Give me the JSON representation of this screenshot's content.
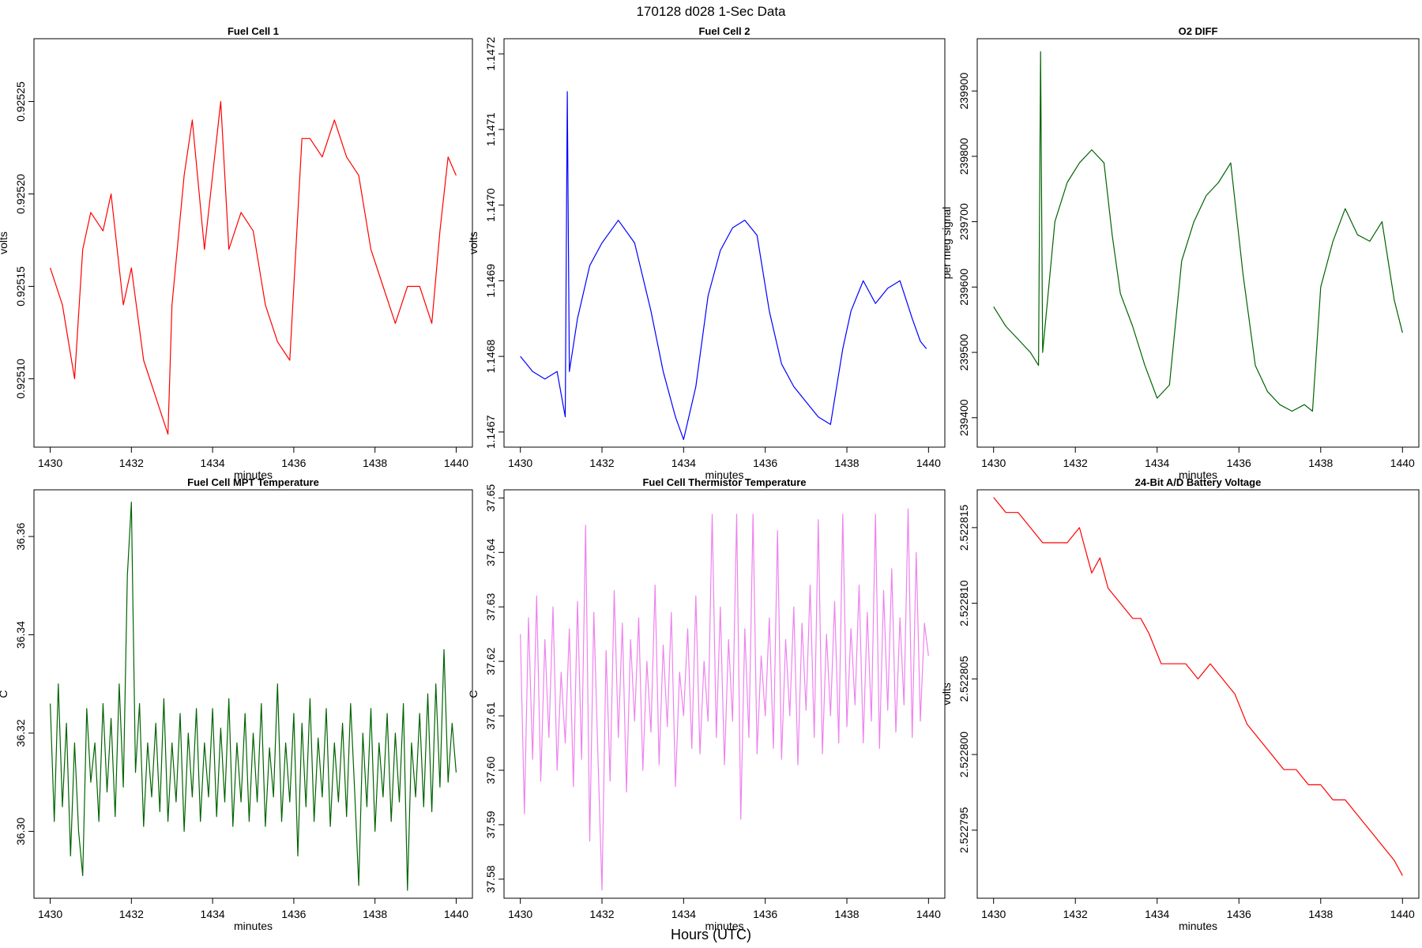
{
  "figure": {
    "title": "170128   d028   1-Sec Data",
    "xlabel": "Hours (UTC)"
  },
  "chart_data": [
    {
      "type": "line",
      "title": "Fuel Cell 1",
      "xlabel": "minutes",
      "ylabel": "volts",
      "color": "#ff0000",
      "xlim": [
        1429.6,
        1440.4
      ],
      "ylim": [
        0.925063,
        0.925284
      ],
      "xticks": [
        1430,
        1432,
        1434,
        1436,
        1438,
        1440
      ],
      "yticks": [
        0.9251,
        0.92515,
        0.9252,
        0.92525
      ],
      "ytick_labels": [
        "0.92510",
        "0.92515",
        "0.92520",
        "0.92525"
      ],
      "x": [
        1430.0,
        1430.3,
        1430.6,
        1430.8,
        1431.0,
        1431.3,
        1431.5,
        1431.8,
        1432.0,
        1432.3,
        1432.6,
        1432.9,
        1433.0,
        1433.3,
        1433.5,
        1433.8,
        1434.0,
        1434.2,
        1434.4,
        1434.7,
        1435.0,
        1435.3,
        1435.6,
        1435.9,
        1436.2,
        1436.4,
        1436.7,
        1437.0,
        1437.3,
        1437.6,
        1437.9,
        1438.2,
        1438.5,
        1438.8,
        1439.1,
        1439.4,
        1439.6,
        1439.8,
        1440.0
      ],
      "y": [
        0.92516,
        0.92514,
        0.9251,
        0.92517,
        0.92519,
        0.92518,
        0.9252,
        0.92514,
        0.92516,
        0.92511,
        0.92509,
        0.92507,
        0.92514,
        0.92521,
        0.92524,
        0.92517,
        0.92521,
        0.92525,
        0.92517,
        0.92519,
        0.92518,
        0.92514,
        0.92512,
        0.92511,
        0.92523,
        0.92523,
        0.92522,
        0.92524,
        0.92522,
        0.92521,
        0.92517,
        0.92515,
        0.92513,
        0.92515,
        0.92515,
        0.92513,
        0.92518,
        0.92522,
        0.92521
      ]
    },
    {
      "type": "line",
      "title": "Fuel Cell 2",
      "xlabel": "minutes",
      "ylabel": "volts",
      "color": "#0000ff",
      "xlim": [
        1429.6,
        1440.4
      ],
      "ylim": [
        1.14668,
        1.14722
      ],
      "xticks": [
        1430,
        1432,
        1434,
        1436,
        1438,
        1440
      ],
      "yticks": [
        1.1467,
        1.1468,
        1.1469,
        1.147,
        1.1471,
        1.1472
      ],
      "ytick_labels": [
        "1.1467",
        "1.1468",
        "1.1469",
        "1.1470",
        "1.1471",
        "1.1472"
      ],
      "x": [
        1430.0,
        1430.3,
        1430.6,
        1430.9,
        1431.1,
        1431.15,
        1431.2,
        1431.4,
        1431.7,
        1432.0,
        1432.4,
        1432.8,
        1433.2,
        1433.5,
        1433.8,
        1434.0,
        1434.3,
        1434.6,
        1434.9,
        1435.2,
        1435.5,
        1435.8,
        1436.1,
        1436.4,
        1436.7,
        1437.0,
        1437.3,
        1437.6,
        1437.9,
        1438.1,
        1438.4,
        1438.7,
        1439.0,
        1439.3,
        1439.6,
        1439.8,
        1439.95
      ],
      "y": [
        1.1468,
        1.14678,
        1.14677,
        1.14678,
        1.14672,
        1.14715,
        1.14678,
        1.14685,
        1.14692,
        1.14695,
        1.14698,
        1.14695,
        1.14686,
        1.14678,
        1.14672,
        1.14669,
        1.14676,
        1.14688,
        1.14694,
        1.14697,
        1.14698,
        1.14696,
        1.14686,
        1.14679,
        1.14676,
        1.14674,
        1.14672,
        1.14671,
        1.14681,
        1.14686,
        1.1469,
        1.14687,
        1.14689,
        1.1469,
        1.14685,
        1.14682,
        1.14681
      ]
    },
    {
      "type": "line",
      "title": "O2 DIFF",
      "xlabel": "minutes",
      "ylabel": "per meg signal",
      "color": "#006400",
      "xlim": [
        1429.6,
        1440.4
      ],
      "ylim": [
        239355,
        239980
      ],
      "xticks": [
        1430,
        1432,
        1434,
        1436,
        1438,
        1440
      ],
      "yticks": [
        239400,
        239500,
        239600,
        239700,
        239800,
        239900
      ],
      "ytick_labels": [
        "239400",
        "239500",
        "239600",
        "239700",
        "239800",
        "239900"
      ],
      "x": [
        1430.0,
        1430.3,
        1430.6,
        1430.9,
        1431.1,
        1431.15,
        1431.2,
        1431.5,
        1431.8,
        1432.1,
        1432.4,
        1432.7,
        1432.9,
        1433.1,
        1433.4,
        1433.7,
        1434.0,
        1434.3,
        1434.6,
        1434.9,
        1435.2,
        1435.5,
        1435.8,
        1436.1,
        1436.4,
        1436.7,
        1437.0,
        1437.3,
        1437.6,
        1437.8,
        1438.0,
        1438.3,
        1438.6,
        1438.9,
        1439.2,
        1439.5,
        1439.8,
        1440.0
      ],
      "y": [
        239570,
        239540,
        239520,
        239500,
        239480,
        239960,
        239500,
        239700,
        239760,
        239790,
        239810,
        239790,
        239680,
        239590,
        239540,
        239480,
        239430,
        239450,
        239640,
        239700,
        239740,
        239760,
        239790,
        239620,
        239480,
        239440,
        239420,
        239410,
        239420,
        239410,
        239600,
        239670,
        239720,
        239680,
        239670,
        239700,
        239580,
        239530
      ]
    },
    {
      "type": "line",
      "title": "Fuel Cell MPT Temperature",
      "xlabel": "minutes",
      "ylabel": "C",
      "color": "#006400",
      "xlim": [
        1429.6,
        1440.4
      ],
      "ylim": [
        36.2864,
        36.3695
      ],
      "xticks": [
        1430,
        1432,
        1434,
        1436,
        1438,
        1440
      ],
      "yticks": [
        36.3,
        36.32,
        36.34,
        36.36
      ],
      "ytick_labels": [
        "36.30",
        "36.32",
        "36.34",
        "36.36"
      ],
      "x": [
        1430.0,
        1430.1,
        1430.2,
        1430.3,
        1430.4,
        1430.5,
        1430.6,
        1430.7,
        1430.8,
        1430.9,
        1431.0,
        1431.1,
        1431.2,
        1431.3,
        1431.4,
        1431.5,
        1431.6,
        1431.7,
        1431.8,
        1431.9,
        1432.0,
        1432.1,
        1432.2,
        1432.3,
        1432.4,
        1432.5,
        1432.6,
        1432.7,
        1432.8,
        1432.9,
        1433.0,
        1433.1,
        1433.2,
        1433.3,
        1433.4,
        1433.5,
        1433.6,
        1433.7,
        1433.8,
        1433.9,
        1434.0,
        1434.1,
        1434.2,
        1434.3,
        1434.4,
        1434.5,
        1434.6,
        1434.7,
        1434.8,
        1434.9,
        1435.0,
        1435.1,
        1435.2,
        1435.3,
        1435.4,
        1435.5,
        1435.6,
        1435.7,
        1435.8,
        1435.9,
        1436.0,
        1436.1,
        1436.2,
        1436.3,
        1436.4,
        1436.5,
        1436.6,
        1436.7,
        1436.8,
        1436.9,
        1437.0,
        1437.1,
        1437.2,
        1437.3,
        1437.4,
        1437.5,
        1437.6,
        1437.7,
        1437.8,
        1437.9,
        1438.0,
        1438.1,
        1438.2,
        1438.3,
        1438.4,
        1438.5,
        1438.6,
        1438.7,
        1438.8,
        1438.9,
        1439.0,
        1439.1,
        1439.2,
        1439.3,
        1439.4,
        1439.5,
        1439.6,
        1439.7,
        1439.8,
        1439.9,
        1440.0
      ],
      "y": [
        36.326,
        36.302,
        36.33,
        36.305,
        36.322,
        36.295,
        36.318,
        36.3,
        36.291,
        36.325,
        36.31,
        36.318,
        36.302,
        36.326,
        36.308,
        36.323,
        36.303,
        36.33,
        36.309,
        36.352,
        36.367,
        36.312,
        36.326,
        36.301,
        36.318,
        36.307,
        36.322,
        36.304,
        36.327,
        36.302,
        36.318,
        36.306,
        36.324,
        36.3,
        36.32,
        36.307,
        36.325,
        36.302,
        36.318,
        36.307,
        36.325,
        36.303,
        36.321,
        36.306,
        36.327,
        36.301,
        36.318,
        36.306,
        36.324,
        36.302,
        36.32,
        36.306,
        36.326,
        36.301,
        36.317,
        36.307,
        36.33,
        36.302,
        36.318,
        36.306,
        36.324,
        36.295,
        36.322,
        36.305,
        36.327,
        36.302,
        36.319,
        36.307,
        36.325,
        36.301,
        36.318,
        36.306,
        36.322,
        36.303,
        36.326,
        36.308,
        36.289,
        36.32,
        36.305,
        36.325,
        36.3,
        36.318,
        36.307,
        36.324,
        36.302,
        36.32,
        36.306,
        36.326,
        36.288,
        36.318,
        36.307,
        36.324,
        36.305,
        36.328,
        36.304,
        36.33,
        36.309,
        36.337,
        36.31,
        36.322,
        36.312
      ]
    },
    {
      "type": "line",
      "title": "Fuel Cell Thermistor Temperature",
      "xlabel": "minutes",
      "ylabel": "C",
      "color": "#ee82ee",
      "xlim": [
        1429.6,
        1440.4
      ],
      "ylim": [
        37.5765,
        37.6515
      ],
      "xticks": [
        1430,
        1432,
        1434,
        1436,
        1438,
        1440
      ],
      "yticks": [
        37.58,
        37.59,
        37.6,
        37.61,
        37.62,
        37.63,
        37.64,
        37.65
      ],
      "ytick_labels": [
        "37.58",
        "37.59",
        "37.60",
        "37.61",
        "37.62",
        "37.63",
        "37.64",
        "37.65"
      ],
      "x": [
        1430.0,
        1430.1,
        1430.2,
        1430.3,
        1430.4,
        1430.5,
        1430.6,
        1430.7,
        1430.8,
        1430.9,
        1431.0,
        1431.1,
        1431.2,
        1431.3,
        1431.4,
        1431.5,
        1431.6,
        1431.7,
        1431.8,
        1431.9,
        1432.0,
        1432.1,
        1432.2,
        1432.3,
        1432.4,
        1432.5,
        1432.6,
        1432.7,
        1432.8,
        1432.9,
        1433.0,
        1433.1,
        1433.2,
        1433.3,
        1433.4,
        1433.5,
        1433.6,
        1433.7,
        1433.8,
        1433.9,
        1434.0,
        1434.1,
        1434.2,
        1434.3,
        1434.4,
        1434.5,
        1434.6,
        1434.7,
        1434.8,
        1434.9,
        1435.0,
        1435.1,
        1435.2,
        1435.3,
        1435.4,
        1435.5,
        1435.6,
        1435.7,
        1435.8,
        1435.9,
        1436.0,
        1436.1,
        1436.2,
        1436.3,
        1436.4,
        1436.5,
        1436.6,
        1436.7,
        1436.8,
        1436.9,
        1437.0,
        1437.1,
        1437.2,
        1437.3,
        1437.4,
        1437.5,
        1437.6,
        1437.7,
        1437.8,
        1437.9,
        1438.0,
        1438.1,
        1438.2,
        1438.3,
        1438.4,
        1438.5,
        1438.6,
        1438.7,
        1438.8,
        1438.9,
        1439.0,
        1439.1,
        1439.2,
        1439.3,
        1439.4,
        1439.5,
        1439.6,
        1439.7,
        1439.8,
        1439.9,
        1440.0
      ],
      "y": [
        37.625,
        37.592,
        37.628,
        37.602,
        37.632,
        37.598,
        37.624,
        37.606,
        37.63,
        37.6,
        37.618,
        37.605,
        37.626,
        37.597,
        37.631,
        37.602,
        37.645,
        37.587,
        37.629,
        37.603,
        37.578,
        37.622,
        37.598,
        37.633,
        37.606,
        37.627,
        37.596,
        37.624,
        37.609,
        37.628,
        37.6,
        37.62,
        37.607,
        37.634,
        37.601,
        37.623,
        37.608,
        37.629,
        37.597,
        37.618,
        37.61,
        37.626,
        37.604,
        37.632,
        37.603,
        37.62,
        37.609,
        37.647,
        37.606,
        37.63,
        37.601,
        37.624,
        37.609,
        37.647,
        37.591,
        37.626,
        37.606,
        37.647,
        37.603,
        37.621,
        37.61,
        37.628,
        37.604,
        37.644,
        37.602,
        37.624,
        37.61,
        37.63,
        37.601,
        37.627,
        37.611,
        37.634,
        37.606,
        37.646,
        37.603,
        37.625,
        37.61,
        37.631,
        37.605,
        37.647,
        37.608,
        37.626,
        37.612,
        37.634,
        37.605,
        37.629,
        37.609,
        37.647,
        37.604,
        37.633,
        37.611,
        37.637,
        37.607,
        37.628,
        37.612,
        37.648,
        37.606,
        37.64,
        37.609,
        37.627,
        37.621
      ]
    },
    {
      "type": "line",
      "title": "24-Bit A/D Battery Voltage",
      "xlabel": "minutes",
      "ylabel": "volts",
      "color": "#ff0000",
      "xlim": [
        1429.6,
        1440.4
      ],
      "ylim": [
        2.5227905,
        2.5228175
      ],
      "xticks": [
        1430,
        1432,
        1434,
        1436,
        1438,
        1440
      ],
      "yticks": [
        2.522795,
        2.5228,
        2.522805,
        2.52281,
        2.522815
      ],
      "ytick_labels": [
        "2.522795",
        "2.522800",
        "2.522805",
        "2.522810",
        "2.522815"
      ],
      "x": [
        1430.0,
        1430.3,
        1430.6,
        1430.9,
        1431.2,
        1431.5,
        1431.8,
        1432.1,
        1432.4,
        1432.6,
        1432.8,
        1433.1,
        1433.4,
        1433.6,
        1433.8,
        1434.1,
        1434.4,
        1434.7,
        1435.0,
        1435.3,
        1435.6,
        1435.9,
        1436.2,
        1436.5,
        1436.8,
        1437.1,
        1437.4,
        1437.7,
        1438.0,
        1438.3,
        1438.6,
        1438.9,
        1439.2,
        1439.5,
        1439.8,
        1440.0
      ],
      "y": [
        2.522817,
        2.522816,
        2.522816,
        2.522815,
        2.522814,
        2.522814,
        2.522814,
        2.522815,
        2.522812,
        2.522813,
        2.522811,
        2.52281,
        2.522809,
        2.522809,
        2.522808,
        2.522806,
        2.522806,
        2.522806,
        2.522805,
        2.522806,
        2.522805,
        2.522804,
        2.522802,
        2.522801,
        2.5228,
        2.522799,
        2.522799,
        2.522798,
        2.522798,
        2.522797,
        2.522797,
        2.522796,
        2.522795,
        2.522794,
        2.522793,
        2.522792
      ]
    }
  ]
}
